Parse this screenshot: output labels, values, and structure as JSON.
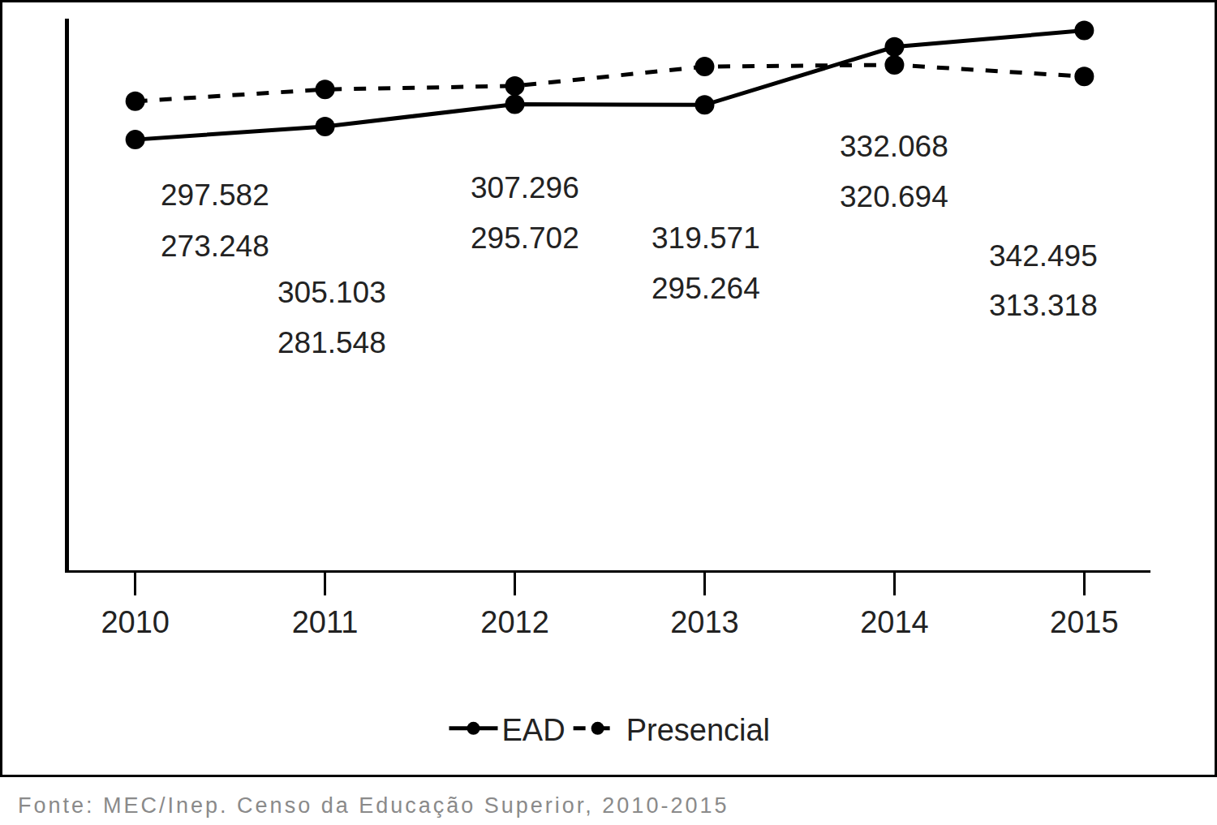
{
  "chart_data": {
    "type": "line",
    "categories": [
      "2010",
      "2011",
      "2012",
      "2013",
      "2014",
      "2015"
    ],
    "series": [
      {
        "name": "EAD",
        "color": "#000000",
        "line_style": "solid",
        "marker": "circle",
        "values": [
          273248,
          281548,
          295702,
          295264,
          332068,
          342495
        ],
        "value_labels": [
          "273.248",
          "281.548",
          "295.702",
          "295.264",
          "332.068",
          "342.495"
        ]
      },
      {
        "name": "Presencial",
        "color": "#000000",
        "line_style": "dashed",
        "marker": "circle",
        "values": [
          297582,
          305103,
          307296,
          319571,
          320694,
          313318
        ],
        "value_labels": [
          "297.582",
          "305.103",
          "307.296",
          "319.571",
          "320.694",
          "313.318"
        ]
      }
    ],
    "ylim": [
      0,
      350000
    ],
    "yticks": [],
    "tick_labels": "x",
    "grid": false,
    "legend": "bottom",
    "data_labels": true,
    "source": "Fonte: MEC/Inep. Censo da Educação Superior, 2010-2015"
  }
}
